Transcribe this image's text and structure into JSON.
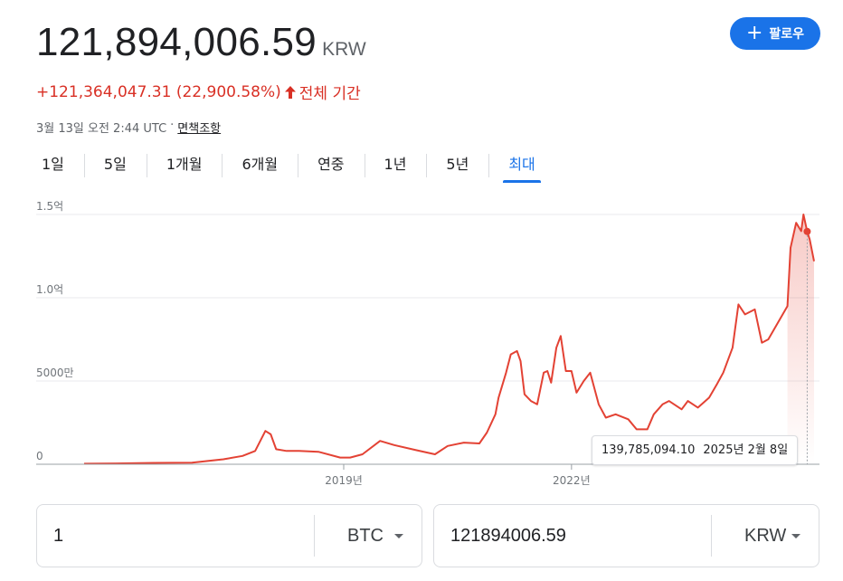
{
  "quote": {
    "price": "121,894,006.59",
    "currency": "KRW",
    "change": "+121,364,047.31 (22,900.58%)",
    "period": "전체 기간",
    "timestamp": "3월 13일 오전 2:44 UTC",
    "separator": "·",
    "disclaimer": "면책조항"
  },
  "follow_button": {
    "icon": "plus-icon",
    "label": "팔로우",
    "color": "#1a73e8"
  },
  "tabs": [
    {
      "label": "1일"
    },
    {
      "label": "5일"
    },
    {
      "label": "1개월"
    },
    {
      "label": "6개월"
    },
    {
      "label": "연중"
    },
    {
      "label": "1년"
    },
    {
      "label": "5년"
    },
    {
      "label": "최대",
      "active": true
    }
  ],
  "tooltip": {
    "value": "139,785,094.10",
    "date": "2025년 2월 8일"
  },
  "chart_data": {
    "type": "area",
    "line_color": "#e34234",
    "y_tick_labels": [
      "0",
      "5000만",
      "1.0억",
      "1.5억"
    ],
    "y_ticks": [
      0,
      50000000,
      100000000,
      150000000
    ],
    "ylim": [
      0,
      150000000
    ],
    "x_tick_labels": [
      "2019년",
      "2022년"
    ],
    "x_ticks": [
      "2019-01-01",
      "2022-01-01"
    ],
    "xlim": [
      "2015-08-01",
      "2025-03-13"
    ],
    "grid": true,
    "highlight": {
      "x": "2025-02-08",
      "y": 139785094.1
    },
    "series": [
      {
        "x": [
          "2015-08-01",
          "2016-01-01",
          "2016-07-01",
          "2017-01-01",
          "2017-06-01",
          "2017-09-01",
          "2017-11-01",
          "2017-12-20",
          "2018-01-15",
          "2018-02-10",
          "2018-04-01",
          "2018-06-01",
          "2018-09-01",
          "2018-12-15",
          "2019-02-01",
          "2019-04-01",
          "2019-06-25",
          "2019-09-01",
          "2019-12-15",
          "2020-03-15",
          "2020-05-15",
          "2020-08-01",
          "2020-10-15",
          "2020-11-20",
          "2020-12-31",
          "2021-01-15",
          "2021-02-20",
          "2021-03-15",
          "2021-04-14",
          "2021-05-01",
          "2021-05-20",
          "2021-06-20",
          "2021-07-20",
          "2021-08-20",
          "2021-09-07",
          "2021-09-25",
          "2021-10-20",
          "2021-11-10",
          "2021-12-05",
          "2022-01-01",
          "2022-01-25",
          "2022-03-01",
          "2022-04-01",
          "2022-05-12",
          "2022-06-15",
          "2022-08-01",
          "2022-10-01",
          "2022-11-10",
          "2023-01-01",
          "2023-02-01",
          "2023-03-15",
          "2023-04-15",
          "2023-06-15",
          "2023-07-15",
          "2023-09-01",
          "2023-10-25",
          "2023-12-01",
          "2024-01-01",
          "2024-02-15",
          "2024-03-14",
          "2024-04-15",
          "2024-06-01",
          "2024-07-05",
          "2024-08-05",
          "2024-09-20",
          "2024-11-05",
          "2024-11-20",
          "2024-12-17",
          "2025-01-10",
          "2025-01-21",
          "2025-02-08",
          "2025-02-20",
          "2025-03-13"
        ],
        "y": [
          300000,
          500000,
          800000,
          1000000,
          3000000,
          5000000,
          8000000,
          20000000,
          18000000,
          9000000,
          8000000,
          8000000,
          7500000,
          4000000,
          4000000,
          6000000,
          14000000,
          11500000,
          8500000,
          6000000,
          11000000,
          13000000,
          12500000,
          19000000,
          30000000,
          40000000,
          55000000,
          66000000,
          68000000,
          62000000,
          42000000,
          38000000,
          36000000,
          55000000,
          56000000,
          49000000,
          70000000,
          77000000,
          56000000,
          56000000,
          43000000,
          50000000,
          55000000,
          36000000,
          28000000,
          30000000,
          27000000,
          21000000,
          21000000,
          30000000,
          36000000,
          38000000,
          33000000,
          38000000,
          34000000,
          40000000,
          48000000,
          55000000,
          70000000,
          96000000,
          90000000,
          93000000,
          73000000,
          75000000,
          85000000,
          95000000,
          130000000,
          145000000,
          140000000,
          150000000,
          139785094.1,
          135000000,
          121894006.59
        ]
      }
    ]
  },
  "converter": {
    "from": {
      "amount": "1",
      "unit": "BTC"
    },
    "to": {
      "amount": "121894006.59",
      "unit": "KRW"
    }
  }
}
